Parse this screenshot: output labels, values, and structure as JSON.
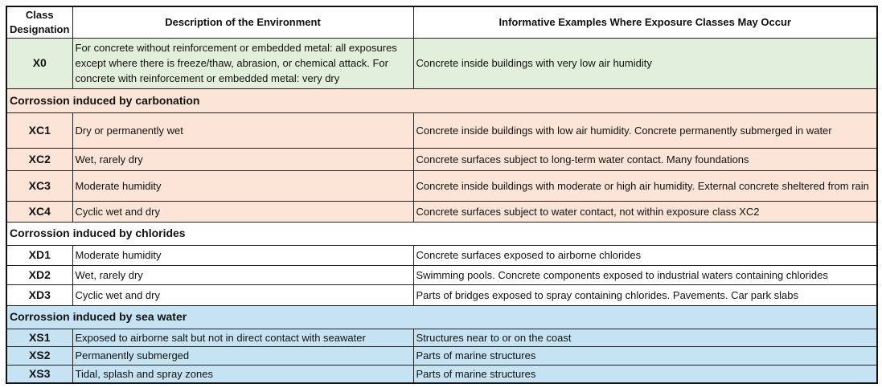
{
  "colors": {
    "none": "#e2efda",
    "carbonation": "#fce4d6",
    "chlorides": "#ffffff",
    "sea_water": "#c5e3f2"
  },
  "header": {
    "class": "Class Designation",
    "description": "Description of the Environment",
    "examples": "Informative Examples Where Exposure Classes May Occur"
  },
  "rows": [
    {
      "type": "class",
      "group": "none",
      "class": "X0",
      "description": "For concrete without reinforcement or embedded metal: all exposures except where there is freeze/thaw, abrasion, or chemical attack. For concrete with reinforcement or embedded metal: very dry",
      "examples": "Concrete inside buildings with very low air humidity"
    },
    {
      "type": "section",
      "group": "carbonation",
      "label": "Corrossion induced by carbonation"
    },
    {
      "type": "class",
      "group": "carbonation",
      "class": "XC1",
      "description": "Dry or permanently wet",
      "examples": "Concrete inside buildings with low air humidity. Concrete permanently submerged in water"
    },
    {
      "type": "class",
      "group": "carbonation",
      "class": "XC2",
      "description": "Wet, rarely dry",
      "examples": "Concrete surfaces subject to long-term water contact. Many foundations"
    },
    {
      "type": "class",
      "group": "carbonation",
      "class": "XC3",
      "description": "Moderate humidity",
      "examples": "Concrete inside buildings with moderate or high air humidity. External concrete sheltered from rain"
    },
    {
      "type": "class",
      "group": "carbonation",
      "class": "XC4",
      "description": "Cyclic wet and dry",
      "examples": "Concrete surfaces subject to water contact, not within exposure class XC2"
    },
    {
      "type": "section",
      "group": "chlorides",
      "label": "Corrossion induced by chlorides"
    },
    {
      "type": "class",
      "group": "chlorides",
      "class": "XD1",
      "description": "Moderate humidity",
      "examples": "Concrete surfaces exposed to airborne chlorides"
    },
    {
      "type": "class",
      "group": "chlorides",
      "class": "XD2",
      "description": "Wet, rarely dry",
      "examples": "Swimming pools. Concrete components exposed to industrial waters containing chlorides"
    },
    {
      "type": "class",
      "group": "chlorides",
      "class": "XD3",
      "description": "Cyclic wet and dry",
      "examples": "Parts of bridges exposed to spray containing chlorides. Pavements. Car park slabs"
    },
    {
      "type": "section",
      "group": "sea_water",
      "label": "Corrossion induced by sea water"
    },
    {
      "type": "class",
      "group": "sea_water",
      "class": "XS1",
      "description": "Exposed to airborne salt but not in direct contact with seawater",
      "examples": "Structures near to or on the coast"
    },
    {
      "type": "class",
      "group": "sea_water",
      "class": "XS2",
      "description": "Permanently submerged",
      "examples": "Parts of marine structures"
    },
    {
      "type": "class",
      "group": "sea_water",
      "class": "XS3",
      "description": "Tidal, splash and spray zones",
      "examples": "Parts of marine structures"
    }
  ]
}
